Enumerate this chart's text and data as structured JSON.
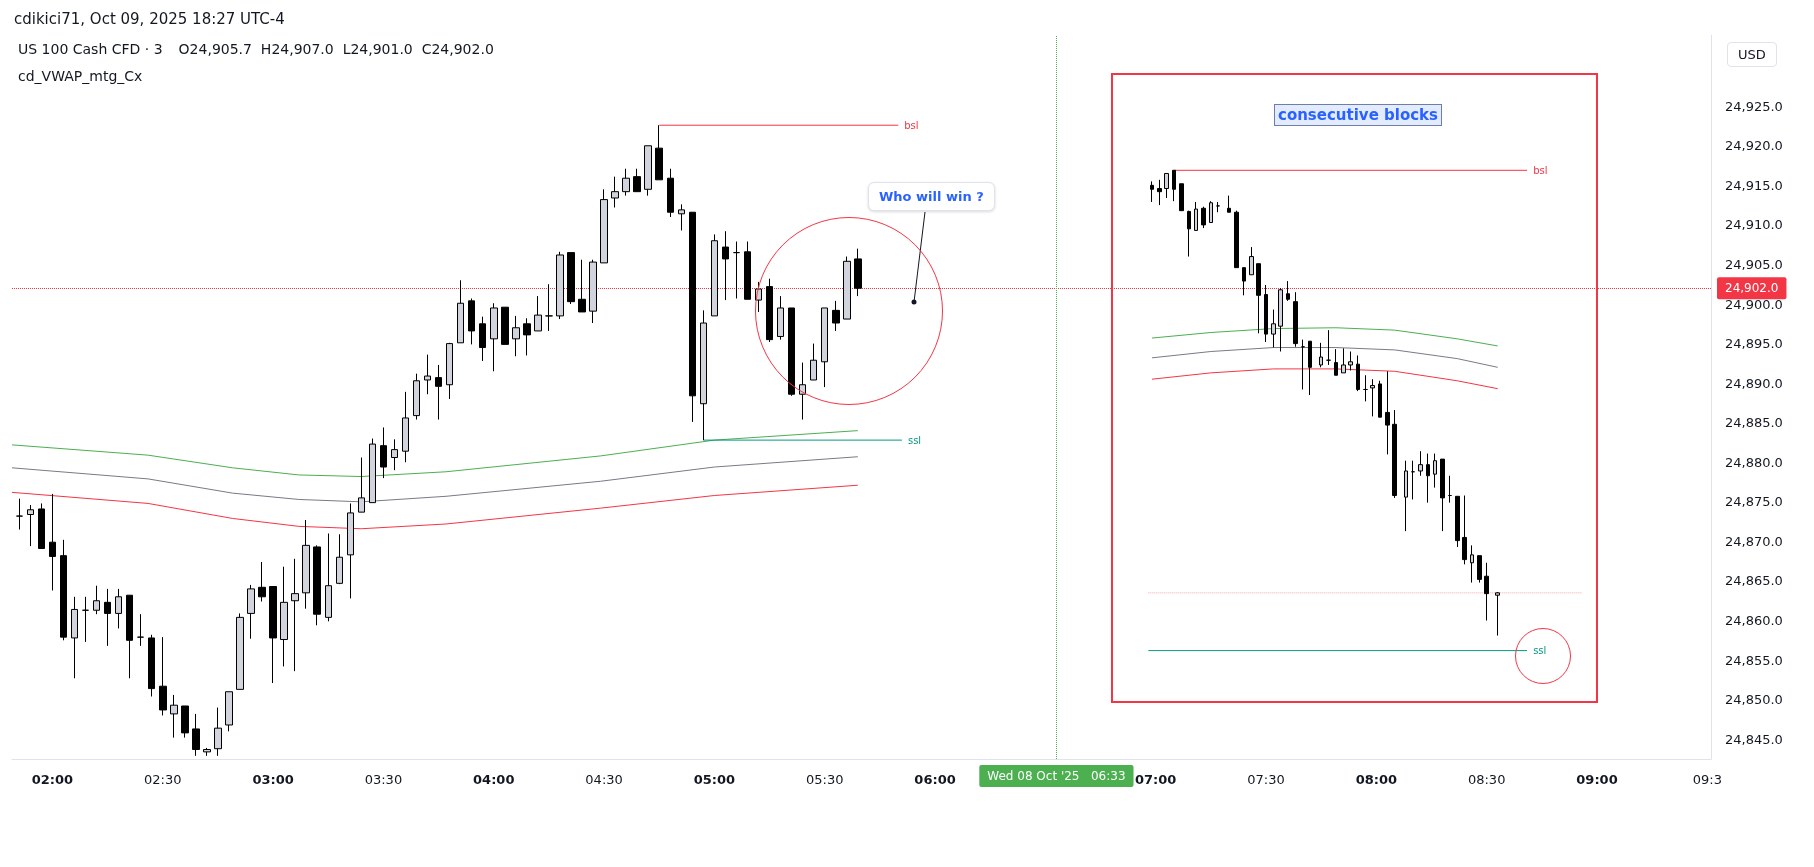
{
  "chart_data": {
    "type": "candlestick",
    "title": "US 100 Cash CFD · 3",
    "subtitle": "O24,905.7  H24,907.0  L24,901.0  C24,902.0",
    "ylabel": "USD",
    "annotations": [
      "cdikici71, Oct 09, 2025 18:27 UTC-4",
      "cd_VWAP_mtg_Cx",
      "Who will win ?",
      "consecutive blocks"
    ],
    "x": [
      "2025-10-08T01:51",
      "2025-10-08T01:54",
      "2025-10-08T01:57",
      "2025-10-08T02:00",
      "2025-10-08T02:03",
      "2025-10-08T02:06",
      "2025-10-08T02:09",
      "2025-10-08T02:12",
      "2025-10-08T02:15",
      "2025-10-08T02:18",
      "2025-10-08T02:21",
      "2025-10-08T02:24",
      "2025-10-08T02:27",
      "2025-10-08T02:30",
      "2025-10-08T02:33",
      "2025-10-08T02:36",
      "2025-10-08T02:39",
      "2025-10-08T02:42",
      "2025-10-08T02:45",
      "2025-10-08T02:48",
      "2025-10-08T02:51",
      "2025-10-08T02:54",
      "2025-10-08T02:57",
      "2025-10-08T03:00",
      "2025-10-08T03:03",
      "2025-10-08T03:06",
      "2025-10-08T03:09",
      "2025-10-08T03:12",
      "2025-10-08T03:15",
      "2025-10-08T03:18",
      "2025-10-08T03:21",
      "2025-10-08T03:24",
      "2025-10-08T03:27",
      "2025-10-08T03:30",
      "2025-10-08T03:33",
      "2025-10-08T03:36",
      "2025-10-08T03:39",
      "2025-10-08T03:42",
      "2025-10-08T03:45",
      "2025-10-08T03:48",
      "2025-10-08T03:51",
      "2025-10-08T03:54",
      "2025-10-08T03:57",
      "2025-10-08T04:00",
      "2025-10-08T04:03",
      "2025-10-08T04:06",
      "2025-10-08T04:09",
      "2025-10-08T04:12",
      "2025-10-08T04:15",
      "2025-10-08T04:18",
      "2025-10-08T04:21",
      "2025-10-08T04:24",
      "2025-10-08T04:27",
      "2025-10-08T04:30",
      "2025-10-08T04:33",
      "2025-10-08T04:36",
      "2025-10-08T04:39",
      "2025-10-08T04:42",
      "2025-10-08T04:45",
      "2025-10-08T04:48",
      "2025-10-08T04:51",
      "2025-10-08T04:54",
      "2025-10-08T04:57",
      "2025-10-08T05:00",
      "2025-10-08T05:03",
      "2025-10-08T05:06",
      "2025-10-08T05:09",
      "2025-10-08T05:12",
      "2025-10-08T05:15",
      "2025-10-08T05:18",
      "2025-10-08T05:21",
      "2025-10-08T05:24",
      "2025-10-08T05:27",
      "2025-10-08T05:30",
      "2025-10-08T05:33",
      "2025-10-08T05:36",
      "2025-10-08T05:39"
    ],
    "ohlc": [
      [
        24873.2,
        24875.4,
        24871.5,
        24873.2
      ],
      [
        24873.4,
        24874.6,
        24869.4,
        24874.0
      ],
      [
        24874.1,
        24874.8,
        24869.1,
        24869.1
      ],
      [
        24869.9,
        24876.0,
        24863.8,
        24868.1
      ],
      [
        24868.2,
        24870.2,
        24857.5,
        24857.9
      ],
      [
        24857.8,
        24863.0,
        24852.7,
        24861.4
      ],
      [
        24861.3,
        24863.0,
        24857.3,
        24861.3
      ],
      [
        24861.3,
        24864.4,
        24860.8,
        24862.5
      ],
      [
        24862.3,
        24864.0,
        24856.8,
        24860.9
      ],
      [
        24860.9,
        24864.0,
        24859.0,
        24863.0
      ],
      [
        24863.2,
        24863.2,
        24852.7,
        24857.5
      ],
      [
        24857.9,
        24860.8,
        24856.8,
        24857.9
      ],
      [
        24857.8,
        24858.2,
        24850.4,
        24851.4
      ],
      [
        24851.7,
        24857.9,
        24848.0,
        24848.7
      ],
      [
        24848.2,
        24850.6,
        24845.2,
        24849.3
      ],
      [
        24849.2,
        24849.2,
        24845.2,
        24845.8
      ],
      [
        24846.3,
        24848.2,
        24842.9,
        24843.7
      ],
      [
        24843.4,
        24843.9,
        24842.9,
        24843.7
      ],
      [
        24843.8,
        24849.0,
        24842.9,
        24846.4
      ],
      [
        24846.8,
        24851.0,
        24846.0,
        24851.0
      ],
      [
        24851.3,
        24860.9,
        24851.3,
        24860.4
      ],
      [
        24860.9,
        24864.5,
        24857.7,
        24864.0
      ],
      [
        24864.2,
        24867.4,
        24862.4,
        24863.0
      ],
      [
        24864.3,
        24864.3,
        24852.1,
        24857.8
      ],
      [
        24857.6,
        24866.8,
        24854.2,
        24862.3
      ],
      [
        24862.5,
        24867.8,
        24853.6,
        24863.4
      ],
      [
        24863.5,
        24872.7,
        24861.5,
        24869.5
      ],
      [
        24869.3,
        24869.5,
        24859.4,
        24860.8
      ],
      [
        24860.4,
        24871.0,
        24859.9,
        24864.4
      ],
      [
        24864.7,
        24870.9,
        24864.6,
        24868.0
      ],
      [
        24868.3,
        24874.8,
        24862.8,
        24873.6
      ],
      [
        24873.7,
        24880.6,
        24873.7,
        24875.5
      ],
      [
        24874.9,
        24883.0,
        24874.9,
        24882.3
      ],
      [
        24882.1,
        24884.4,
        24878.0,
        24879.4
      ],
      [
        24880.6,
        24882.9,
        24879.0,
        24881.6
      ],
      [
        24881.4,
        24888.9,
        24880.0,
        24885.6
      ],
      [
        24885.9,
        24891.2,
        24885.4,
        24890.3
      ],
      [
        24890.4,
        24893.6,
        24888.6,
        24890.9
      ],
      [
        24890.7,
        24892.3,
        24885.4,
        24889.6
      ],
      [
        24889.8,
        24895.1,
        24888.0,
        24895.0
      ],
      [
        24895.1,
        24903.0,
        24895.1,
        24900.1
      ],
      [
        24900.4,
        24900.7,
        24894.9,
        24896.6
      ],
      [
        24897.5,
        24898.4,
        24892.8,
        24894.5
      ],
      [
        24895.6,
        24900.1,
        24891.5,
        24899.5
      ],
      [
        24899.6,
        24899.6,
        24894.9,
        24894.9
      ],
      [
        24895.6,
        24898.5,
        24893.4,
        24897.0
      ],
      [
        24897.5,
        24898.2,
        24893.5,
        24896.1
      ],
      [
        24896.6,
        24901.0,
        24896.6,
        24898.6
      ],
      [
        24898.5,
        24902.5,
        24896.6,
        24898.5
      ],
      [
        24898.5,
        24906.6,
        24898.1,
        24906.2
      ],
      [
        24906.5,
        24906.5,
        24900.0,
        24900.3
      ],
      [
        24900.6,
        24905.6,
        24899.0,
        24899.0
      ],
      [
        24899.1,
        24905.6,
        24897.6,
        24905.3
      ],
      [
        24905.2,
        24914.5,
        24905.2,
        24913.2
      ],
      [
        24913.4,
        24916.1,
        24912.2,
        24914.2
      ],
      [
        24914.2,
        24917.1,
        24913.7,
        24915.9
      ],
      [
        24916.1,
        24917.1,
        24914.2,
        24914.2
      ],
      [
        24914.5,
        24920.0,
        24913.7,
        24920.0
      ],
      [
        24919.7,
        24922.6,
        24915.7,
        24915.7
      ],
      [
        24915.9,
        24917.1,
        24911.0,
        24911.6
      ],
      [
        24911.4,
        24912.6,
        24909.3,
        24911.9
      ],
      [
        24911.6,
        24911.6,
        24885.1,
        24888.4
      ],
      [
        24887.4,
        24899.2,
        24882.8,
        24897.6
      ],
      [
        24898.5,
        24908.8,
        24898.5,
        24908.0
      ],
      [
        24907.2,
        24909.2,
        24900.5,
        24905.7
      ],
      [
        24906.5,
        24907.9,
        24900.7,
        24906.5
      ],
      [
        24906.6,
        24907.9,
        24900.6,
        24900.6
      ],
      [
        24900.5,
        24902.8,
        24899.0,
        24901.9
      ],
      [
        24902.2,
        24903.2,
        24895.2,
        24895.5
      ],
      [
        24895.9,
        24901.0,
        24895.5,
        24899.5
      ],
      [
        24899.5,
        24899.5,
        24888.4,
        24888.6
      ],
      [
        24888.6,
        24892.6,
        24885.4,
        24889.8
      ],
      [
        24890.4,
        24895.0,
        24890.4,
        24892.9
      ],
      [
        24892.7,
        24899.5,
        24889.5,
        24899.5
      ],
      [
        24899.2,
        24900.4,
        24896.6,
        24897.6
      ],
      [
        24898.1,
        24906.0,
        24898.1,
        24905.4
      ],
      [
        24905.7,
        24907.0,
        24901.0,
        24902.0
      ]
    ],
    "series": [
      {
        "type": "line",
        "color": "#4caf50",
        "x": [
          "2025-10-08T01:49",
          "2025-10-08T02:26",
          "2025-10-08T02:49",
          "2025-10-08T03:07",
          "2025-10-08T03:24",
          "2025-10-08T03:47",
          "2025-10-08T04:29",
          "2025-10-08T05:00",
          "2025-10-08T05:39"
        ],
        "values": [
          24882.2,
          24880.9,
          24879.3,
          24878.4,
          24878.2,
          24878.8,
          24880.8,
          24882.8,
          24884.0
        ]
      },
      {
        "type": "line",
        "color": "#787b86",
        "x": [
          "2025-10-08T01:49",
          "2025-10-08T02:26",
          "2025-10-08T02:49",
          "2025-10-08T03:07",
          "2025-10-08T03:24",
          "2025-10-08T03:47",
          "2025-10-08T04:29",
          "2025-10-08T05:00",
          "2025-10-08T05:39"
        ],
        "values": [
          24879.3,
          24877.9,
          24876.1,
          24875.3,
          24875.0,
          24875.7,
          24877.6,
          24879.4,
          24880.7
        ]
      },
      {
        "type": "line",
        "color": "#f23645",
        "x": [
          "2025-10-08T01:49",
          "2025-10-08T02:26",
          "2025-10-08T02:49",
          "2025-10-08T03:07",
          "2025-10-08T03:24",
          "2025-10-08T03:47",
          "2025-10-08T04:29",
          "2025-10-08T05:00",
          "2025-10-08T05:39"
        ],
        "values": [
          24876.2,
          24874.8,
          24872.9,
          24871.9,
          24871.6,
          24872.2,
          24874.2,
          24875.8,
          24877.1
        ]
      },
      {
        "type": "line",
        "name": "bsl",
        "color": "#f23645",
        "x": [
          "2025-10-08T04:45",
          "2025-10-08T05:50"
        ],
        "values": [
          24922.6,
          24922.6
        ]
      },
      {
        "type": "line",
        "name": "ssl",
        "color": "#089981",
        "x": [
          "2025-10-08T04:57",
          "2025-10-08T05:51"
        ],
        "values": [
          24882.8,
          24882.8
        ]
      },
      {
        "type": "line",
        "color": "#4caf50",
        "x": [
          "2025-10-08T06:59",
          "2025-10-08T07:15",
          "2025-10-08T07:32",
          "2025-10-08T07:49",
          "2025-10-08T08:05",
          "2025-10-08T08:22",
          "2025-10-08T08:33"
        ],
        "values": [
          24895.7,
          24896.4,
          24896.9,
          24897.0,
          24896.7,
          24895.6,
          24894.7
        ]
      },
      {
        "type": "line",
        "color": "#787b86",
        "x": [
          "2025-10-08T06:59",
          "2025-10-08T07:15",
          "2025-10-08T07:32",
          "2025-10-08T07:49",
          "2025-10-08T08:05",
          "2025-10-08T08:22",
          "2025-10-08T08:33"
        ],
        "values": [
          24893.2,
          24894.0,
          24894.5,
          24894.5,
          24894.2,
          24893.1,
          24892.0
        ]
      },
      {
        "type": "line",
        "color": "#f23645",
        "x": [
          "2025-10-08T06:59",
          "2025-10-08T07:15",
          "2025-10-08T07:32",
          "2025-10-08T07:49",
          "2025-10-08T08:05",
          "2025-10-08T08:22",
          "2025-10-08T08:33"
        ],
        "values": [
          24890.5,
          24891.3,
          24891.8,
          24891.8,
          24891.5,
          24890.3,
          24889.3
        ]
      },
      {
        "type": "line",
        "name": "bsl",
        "color": "#f23645",
        "x": [
          "2025-10-08T07:05",
          "2025-10-08T08:41"
        ],
        "values": [
          24916.9,
          24916.9
        ]
      },
      {
        "type": "line",
        "name": "ssl",
        "color": "#089981",
        "x": [
          "2025-10-08T06:58",
          "2025-10-08T08:41"
        ],
        "values": [
          24856.2,
          24856.2
        ]
      },
      {
        "type": "line",
        "color": "#f7a1a8",
        "line_style": "dotted",
        "x": [
          "2025-10-08T06:58",
          "2025-10-08T08:56"
        ],
        "values": [
          24863.5,
          24863.5
        ]
      },
      {
        "type": "candlestick",
        "x": [
          "2025-10-08T06:59",
          "2025-10-08T07:01",
          "2025-10-08T07:03",
          "2025-10-08T07:05",
          "2025-10-08T07:07",
          "2025-10-08T07:09",
          "2025-10-08T07:11",
          "2025-10-08T07:13",
          "2025-10-08T07:15",
          "2025-10-08T07:17",
          "2025-10-08T07:20",
          "2025-10-08T07:22",
          "2025-10-08T07:24",
          "2025-10-08T07:26",
          "2025-10-08T07:28",
          "2025-10-08T07:30",
          "2025-10-08T07:32",
          "2025-10-08T07:34",
          "2025-10-08T07:36",
          "2025-10-08T07:38",
          "2025-10-08T07:40",
          "2025-10-08T07:42",
          "2025-10-08T07:45",
          "2025-10-08T07:47",
          "2025-10-08T07:49",
          "2025-10-08T07:51",
          "2025-10-08T07:53",
          "2025-10-08T07:55",
          "2025-10-08T07:57",
          "2025-10-08T07:59",
          "2025-10-08T08:01",
          "2025-10-08T08:03",
          "2025-10-08T08:05",
          "2025-10-08T08:08",
          "2025-10-08T08:10",
          "2025-10-08T08:12",
          "2025-10-08T08:14",
          "2025-10-08T08:16",
          "2025-10-08T08:18",
          "2025-10-08T08:20",
          "2025-10-08T08:22",
          "2025-10-08T08:24",
          "2025-10-08T08:26",
          "2025-10-08T08:28",
          "2025-10-08T08:30",
          "2025-10-08T08:33"
        ],
        "ohlc": [
          [
            24915.0,
            24915.5,
            24912.9,
            24914.5
          ],
          [
            24914.6,
            24915.7,
            24912.5,
            24914.2
          ],
          [
            24914.6,
            24916.5,
            24913.4,
            24916.5
          ],
          [
            24916.9,
            24916.9,
            24913.0,
            24914.5
          ],
          [
            24915.2,
            24915.2,
            24911.8,
            24911.8
          ],
          [
            24911.7,
            24911.8,
            24906.0,
            24909.5
          ],
          [
            24909.3,
            24912.9,
            24909.3,
            24912.0
          ],
          [
            24912.1,
            24912.3,
            24909.6,
            24910.0
          ],
          [
            24910.3,
            24913.0,
            24910.3,
            24912.8
          ],
          [
            24912.4,
            24912.9,
            24911.6,
            24912.4
          ],
          [
            24912.1,
            24913.7,
            24911.6,
            24911.6
          ],
          [
            24911.6,
            24911.8,
            24904.6,
            24904.6
          ],
          [
            24904.6,
            24904.6,
            24901.1,
            24902.9
          ],
          [
            24903.7,
            24907.2,
            24903.7,
            24906.0
          ],
          [
            24905.1,
            24905.1,
            24896.3,
            24901.1
          ],
          [
            24901.2,
            24902.4,
            24895.2,
            24896.2
          ],
          [
            24896.2,
            24899.3,
            24894.5,
            24897.5
          ],
          [
            24897.2,
            24902.0,
            24894.0,
            24901.8
          ],
          [
            24901.3,
            24902.9,
            24900.4,
            24900.6
          ],
          [
            24900.3,
            24901.5,
            24894.6,
            24895.0
          ],
          [
            24894.6,
            24895.5,
            24889.2,
            24894.6
          ],
          [
            24895.3,
            24895.3,
            24888.5,
            24892.0
          ],
          [
            24892.3,
            24895.1,
            24892.0,
            24893.3
          ],
          [
            24892.9,
            24896.7,
            24892.3,
            24892.9
          ],
          [
            24892.6,
            24894.3,
            24891.0,
            24891.0
          ],
          [
            24891.3,
            24894.4,
            24891.3,
            24892.3
          ],
          [
            24892.3,
            24894.0,
            24891.6,
            24892.7
          ],
          [
            24892.4,
            24893.5,
            24889.0,
            24889.2
          ],
          [
            24889.2,
            24891.0,
            24887.7,
            24889.2
          ],
          [
            24889.4,
            24890.5,
            24885.8,
            24889.7
          ],
          [
            24889.9,
            24890.3,
            24885.7,
            24885.7
          ],
          [
            24886.3,
            24891.5,
            24881.0,
            24884.7
          ],
          [
            24884.8,
            24886.6,
            24875.5,
            24875.8
          ],
          [
            24875.6,
            24880.2,
            24871.3,
            24878.9
          ],
          [
            24878.8,
            24880.2,
            24875.3,
            24878.8
          ],
          [
            24878.9,
            24881.4,
            24878.3,
            24879.7
          ],
          [
            24879.7,
            24881.1,
            24874.9,
            24878.3
          ],
          [
            24878.5,
            24881.1,
            24876.8,
            24880.2
          ],
          [
            24880.4,
            24880.4,
            24871.3,
            24875.5
          ],
          [
            24875.8,
            24878.3,
            24874.9,
            24875.8
          ],
          [
            24875.7,
            24875.7,
            24869.3,
            24870.1
          ],
          [
            24870.5,
            24875.8,
            24867.1,
            24867.7
          ],
          [
            24867.3,
            24869.5,
            24864.8,
            24868.3
          ],
          [
            24868.2,
            24868.2,
            24864.8,
            24865.2
          ],
          [
            24865.6,
            24867.3,
            24860.0,
            24863.4
          ],
          [
            24863.2,
            24863.6,
            24858.1,
            24863.5
          ]
        ]
      }
    ],
    "ref_lines": [
      {
        "axis": "y",
        "value": 24902.0,
        "label": "24,902.0",
        "color": "#f23645",
        "line_style": "dotted"
      },
      {
        "axis": "x",
        "value": "2025-10-08T06:33",
        "label": "Wed 08 Oct '25   06:33",
        "color": "#4caf50",
        "line_style": "dotted"
      }
    ],
    "xlim": [
      "2025-10-08T01:49",
      "2025-10-08T09:31"
    ],
    "xticks": [
      {
        "value": "2025-10-08T02:00",
        "label": "02:00"
      },
      {
        "value": "2025-10-08T02:30",
        "label": "02:30"
      },
      {
        "value": "2025-10-08T03:00",
        "label": "03:00"
      },
      {
        "value": "2025-10-08T03:30",
        "label": "03:30"
      },
      {
        "value": "2025-10-08T04:00",
        "label": "04:00"
      },
      {
        "value": "2025-10-08T04:30",
        "label": "04:30"
      },
      {
        "value": "2025-10-08T05:00",
        "label": "05:00"
      },
      {
        "value": "2025-10-08T05:30",
        "label": "05:30"
      },
      {
        "value": "2025-10-08T06:00",
        "label": "06:00"
      },
      {
        "value": "2025-10-08T07:00",
        "label": "07:00"
      },
      {
        "value": "2025-10-08T07:30",
        "label": "07:30"
      },
      {
        "value": "2025-10-08T08:00",
        "label": "08:00"
      },
      {
        "value": "2025-10-08T08:30",
        "label": "08:30"
      },
      {
        "value": "2025-10-08T09:00",
        "label": "09:00"
      },
      {
        "value": "2025-10-08T09:30",
        "label": "09:3"
      }
    ],
    "ylim": [
      24842.5,
      24934.0
    ],
    "yticks": [
      {
        "value": 24845,
        "label": "24,845.0"
      },
      {
        "value": 24850,
        "label": "24,850.0"
      },
      {
        "value": 24855,
        "label": "24,855.0"
      },
      {
        "value": 24860,
        "label": "24,860.0"
      },
      {
        "value": 24865,
        "label": "24,865.0"
      },
      {
        "value": 24870,
        "label": "24,870.0"
      },
      {
        "value": 24875,
        "label": "24,875.0"
      },
      {
        "value": 24880,
        "label": "24,880.0"
      },
      {
        "value": 24885,
        "label": "24,885.0"
      },
      {
        "value": 24890,
        "label": "24,890.0"
      },
      {
        "value": 24895,
        "label": "24,895.0"
      },
      {
        "value": 24900,
        "label": "24,900.0"
      },
      {
        "value": 24905,
        "label": "24,905.0"
      },
      {
        "value": 24910,
        "label": "24,910.0"
      },
      {
        "value": 24915,
        "label": "24,915.0"
      },
      {
        "value": 24920,
        "label": "24,920.0"
      },
      {
        "value": 24925,
        "label": "24,925.0"
      }
    ],
    "grid": false,
    "legend": false
  }
}
